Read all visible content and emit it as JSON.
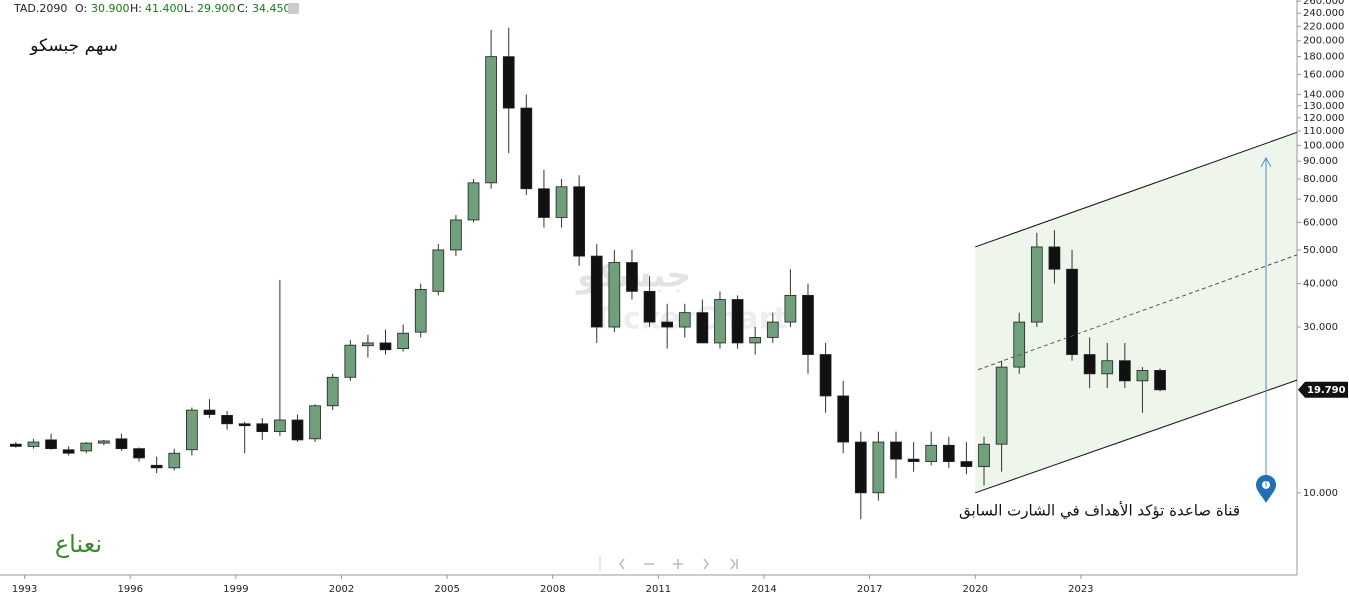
{
  "chart_data": {
    "type": "candlestick",
    "header": {
      "symbol": "TAD.2090",
      "o_label": "O:",
      "open": "30.900",
      "h_label": "H:",
      "high": "41.400",
      "l_label": "L:",
      "low": "29.900",
      "c_label": "C:",
      "close": "34.450"
    },
    "title": "سهم جبسكو",
    "author": "نعناع",
    "annotation": "قناة صاعدة تؤكد الأهداف في الشارت السابق",
    "watermark": "جبسكو",
    "watermark_brand": "TickerChart",
    "log_scale": true,
    "grid": false,
    "up_color": "#6f9f7b",
    "down_color": "#111111",
    "xlim": [
      1992.3,
      2029.14
    ],
    "xticks": [
      1993,
      1996,
      1999,
      2002,
      2005,
      2008,
      2011,
      2014,
      2017,
      2020,
      2023
    ],
    "ylim": [
      5.8,
      262
    ],
    "yticks": [
      {
        "value": 260,
        "label": "260.000"
      },
      {
        "value": 240,
        "label": "240.000"
      },
      {
        "value": 220,
        "label": "220.000"
      },
      {
        "value": 200,
        "label": "200.000"
      },
      {
        "value": 180,
        "label": "180.000"
      },
      {
        "value": 160,
        "label": "160.000"
      },
      {
        "value": 140,
        "label": "140.000"
      },
      {
        "value": 130,
        "label": "130.000"
      },
      {
        "value": 120,
        "label": "120.000"
      },
      {
        "value": 110,
        "label": "110.000"
      },
      {
        "value": 100,
        "label": "100.000"
      },
      {
        "value": 90,
        "label": "90.000"
      },
      {
        "value": 80,
        "label": "80.000"
      },
      {
        "value": 70,
        "label": "70.000"
      },
      {
        "value": 60,
        "label": "60.000"
      },
      {
        "value": 50,
        "label": "50.000"
      },
      {
        "value": 40,
        "label": "40.000"
      },
      {
        "value": 30,
        "label": "30.000"
      },
      {
        "value": 10,
        "label": "10.000"
      }
    ],
    "last_price": {
      "value": 19.79,
      "label": "19.790"
    },
    "x": [
      1992.75,
      1993.25,
      1993.75,
      1994.25,
      1994.75,
      1995.25,
      1995.75,
      1996.25,
      1996.75,
      1997.25,
      1997.75,
      1998.25,
      1998.75,
      1999.25,
      1999.75,
      2000.25,
      2000.75,
      2001.25,
      2001.75,
      2002.25,
      2002.75,
      2003.25,
      2003.75,
      2004.25,
      2004.75,
      2005.25,
      2005.75,
      2006.25,
      2006.75,
      2007.25,
      2007.75,
      2008.25,
      2008.75,
      2009.25,
      2009.75,
      2010.25,
      2010.75,
      2011.25,
      2011.75,
      2012.25,
      2012.75,
      2013.25,
      2013.75,
      2014.25,
      2014.75,
      2015.25,
      2015.75,
      2016.25,
      2016.75,
      2017.25,
      2017.75,
      2018.25,
      2018.75,
      2019.25,
      2019.75,
      2020.25,
      2020.75,
      2021.25,
      2021.75,
      2022.25,
      2022.75,
      2023.25,
      2023.75,
      2024.25,
      2024.75,
      2025.25
    ],
    "open": [
      13.8,
      13.6,
      14.2,
      13.3,
      13.2,
      13.9,
      14.3,
      13.4,
      12.0,
      11.8,
      13.3,
      17.3,
      16.7,
      15.8,
      15.8,
      15.0,
      16.2,
      14.3,
      17.8,
      21.5,
      26.5,
      27.0,
      26.0,
      29,
      38,
      50,
      61,
      78,
      180,
      128,
      75,
      62,
      76,
      48,
      30,
      46,
      38,
      31,
      30,
      33,
      27,
      36,
      27,
      28,
      31,
      37,
      25,
      19,
      14,
      10,
      14,
      12.5,
      12.3,
      13.7,
      12.3,
      11.9,
      13.8,
      23,
      31,
      51,
      44,
      25,
      22,
      24,
      21,
      22.5
    ],
    "high": [
      14.0,
      14.3,
      14.8,
      13.6,
      14.0,
      14.2,
      14.8,
      13.5,
      12.7,
      13.4,
      17.6,
      18.6,
      17.2,
      16.0,
      16.4,
      41,
      16.8,
      18.0,
      22.0,
      27.5,
      28.5,
      29.5,
      30.5,
      40,
      52,
      63,
      80,
      215,
      218,
      140,
      85,
      80,
      82,
      52,
      50,
      50,
      42,
      35,
      35,
      36,
      38,
      37,
      30,
      33,
      44,
      40,
      27,
      21,
      15,
      15,
      15,
      14,
      15,
      14.5,
      14,
      14.5,
      24,
      33,
      56,
      57,
      50,
      28,
      27,
      27,
      23,
      22.8
    ],
    "low": [
      13.5,
      13.4,
      13.3,
      12.8,
      13.0,
      13.7,
      13.2,
      12.3,
      11.4,
      11.6,
      12.8,
      16.4,
      15.2,
      13.0,
      14.2,
      14.6,
      14.0,
      14.0,
      17.3,
      21.0,
      24.5,
      25.0,
      25.5,
      28,
      37,
      48,
      60,
      75,
      95,
      72,
      58,
      58,
      45,
      27,
      29,
      36,
      30,
      26,
      28,
      27,
      26,
      26,
      25,
      27,
      30,
      22,
      17,
      13,
      8.4,
      9.5,
      11,
      11.5,
      12,
      11.8,
      11.3,
      10.5,
      11.5,
      22,
      30,
      40,
      24,
      20,
      20,
      20,
      17,
      19.6
    ],
    "close": [
      13.6,
      14.0,
      13.4,
      13.0,
      13.9,
      14.1,
      13.4,
      12.6,
      11.8,
      13.0,
      17.3,
      16.8,
      15.8,
      15.6,
      15.0,
      16.2,
      14.2,
      17.8,
      21.5,
      26.6,
      27.0,
      25.8,
      28.8,
      38.5,
      50,
      61,
      78,
      180,
      128,
      75,
      62,
      76,
      48,
      30,
      46,
      38,
      31,
      30,
      33,
      27,
      36,
      27,
      28,
      31,
      37,
      25,
      19,
      14,
      10,
      14,
      12.5,
      12.3,
      13.7,
      12.3,
      11.9,
      13.8,
      23,
      31,
      51,
      44,
      25,
      22,
      24,
      21,
      22.5,
      19.79
    ],
    "channel": {
      "upper": {
        "x": [
          2020,
          2029.14
        ],
        "y": [
          51,
          109
        ]
      },
      "lower": {
        "x": [
          2020,
          2029.14
        ],
        "y": [
          10,
          21.1
        ]
      },
      "middle": {
        "x": [
          2020.08,
          2029.14
        ],
        "y": [
          22.6,
          48.4
        ]
      }
    },
    "target_arrow": {
      "x": 2028.26,
      "y": [
        10.4,
        92
      ]
    }
  }
}
